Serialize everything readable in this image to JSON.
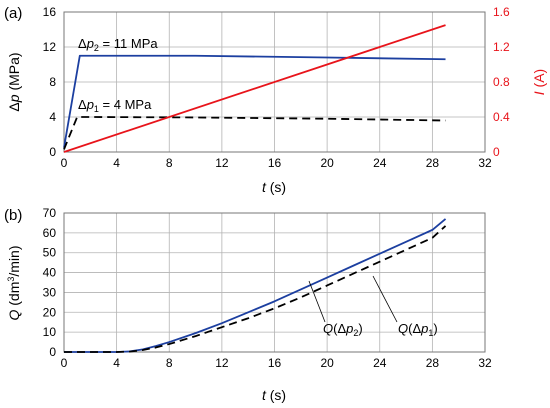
{
  "chart_data": [
    {
      "type": "line",
      "panel_label": "(a)",
      "xlabel": "t (s)",
      "ylabel": "Δp (MPa)",
      "ylabel_right": "I (A)",
      "xlim": [
        0,
        32
      ],
      "ylim": [
        0,
        16
      ],
      "ylim_right": [
        0,
        1.6
      ],
      "xticks": [
        0,
        4,
        8,
        12,
        16,
        20,
        24,
        28,
        32
      ],
      "yticks": [
        0,
        4,
        8,
        12,
        16
      ],
      "yticks_right": [
        0,
        0.4,
        0.8,
        1.2,
        1.6
      ],
      "grid": true,
      "series": [
        {
          "label": "Δp₂ = 11 MPa",
          "axis": "left",
          "color": "#1c3fa0",
          "style": "solid",
          "x": [
            0,
            1.2,
            2,
            10,
            20,
            29
          ],
          "y": [
            0.5,
            11.0,
            11.0,
            11.0,
            10.8,
            10.6
          ]
        },
        {
          "label": "Δp₁ = 4 MPa",
          "axis": "left",
          "color": "#000000",
          "style": "dashed",
          "x": [
            0,
            1.0,
            2,
            10,
            20,
            29
          ],
          "y": [
            0.3,
            4.0,
            4.0,
            3.95,
            3.8,
            3.6
          ]
        },
        {
          "axis": "right",
          "color": "#e8141b",
          "style": "solid",
          "x": [
            0,
            29
          ],
          "y": [
            0,
            1.45
          ]
        }
      ],
      "annotations": [
        {
          "text": "Δp₂ = 11 MPa",
          "x": 1.2,
          "y": 13.3
        },
        {
          "text": "Δp₁ = 4 MPa",
          "x": 1.2,
          "y": 5.9
        }
      ]
    },
    {
      "type": "line",
      "panel_label": "(b)",
      "xlabel": "t (s)",
      "ylabel": "Q (dm³/min)",
      "xlim": [
        0,
        32
      ],
      "ylim": [
        0,
        70
      ],
      "xticks": [
        0,
        4,
        8,
        12,
        16,
        20,
        24,
        28,
        32
      ],
      "yticks": [
        0,
        10,
        20,
        30,
        40,
        50,
        60,
        70
      ],
      "grid": true,
      "series": [
        {
          "label": "Q(Δp₂)",
          "color": "#1c3fa0",
          "style": "solid",
          "x": [
            0,
            4,
            5,
            6,
            7,
            8,
            10,
            12,
            14,
            16,
            18,
            20,
            22,
            24,
            26,
            28,
            29
          ],
          "y": [
            0,
            0,
            0.3,
            1.3,
            3.0,
            5.0,
            9.5,
            14.5,
            20.0,
            25.5,
            31.5,
            37.5,
            43.5,
            49.5,
            55.5,
            61.5,
            67.0
          ]
        },
        {
          "label": "Q(Δp₁)",
          "color": "#000000",
          "style": "dashed",
          "x": [
            0,
            4,
            5,
            6,
            7,
            8,
            10,
            12,
            14,
            16,
            18,
            20,
            22,
            24,
            26,
            28,
            29
          ],
          "y": [
            0,
            0,
            0.2,
            1.0,
            2.3,
            4.0,
            8.0,
            12.5,
            17.0,
            22.0,
            27.5,
            33.5,
            39.5,
            45.5,
            51.5,
            57.5,
            63.5
          ]
        }
      ],
      "annotations": [
        {
          "text": "Q(Δp₂)",
          "x": 18.5,
          "y": 10
        },
        {
          "text": "Q(Δp₁)",
          "x": 24.5,
          "y": 10
        }
      ]
    }
  ]
}
